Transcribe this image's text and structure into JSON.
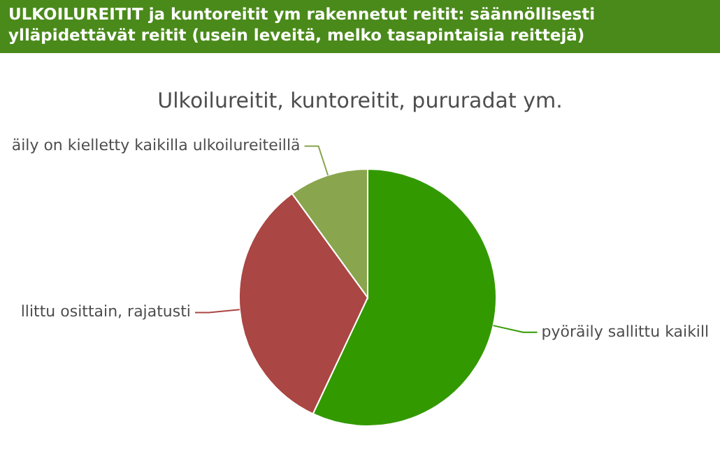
{
  "chart_data": {
    "type": "pie",
    "title": "ULKOILUREITIT ja kuntoreitit ym rakennetut reitit: säännöllisesti ylläpidettävät reitit (usein leveitä, melko tasapintaisia reittejä)",
    "subtitle": "Ulkoilureitit, kuntoreitit, pururadat ym.",
    "categories": [
      "pyöräily sallittu kaikill",
      "llittu osittain, rajatusti",
      "äily on kielletty kaikilla ulkoilureiteillä"
    ],
    "values": [
      57,
      33,
      10
    ],
    "colors": [
      "#339900",
      "#aa4643",
      "#89a54e"
    ]
  }
}
